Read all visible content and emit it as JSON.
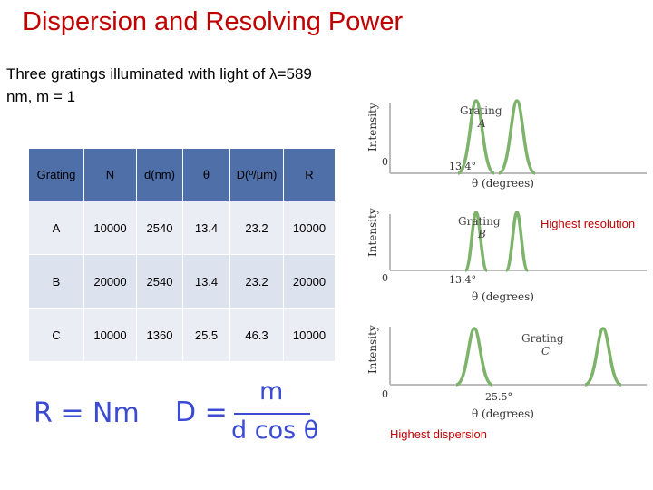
{
  "title": "Dispersion and Resolving Power",
  "subtitle": "Three gratings illuminated with light of λ=589 nm, m = 1",
  "table": {
    "headers": [
      "Grating",
      "N",
      "d(nm)",
      "θ",
      "D(º/μm)",
      "R"
    ],
    "rows": [
      [
        "A",
        "10000",
        "2540",
        "13.4",
        "23.2",
        "10000"
      ],
      [
        "B",
        "20000",
        "2540",
        "13.4",
        "23.2",
        "20000"
      ],
      [
        "C",
        "10000",
        "1360",
        "25.5",
        "46.3",
        "10000"
      ]
    ]
  },
  "formulas": {
    "resolving_power": "R = Nm",
    "dispersion_lhs": "D =",
    "dispersion_numerator": "m",
    "dispersion_denominator": "d cos θ"
  },
  "figure": {
    "panels": [
      {
        "name": "Grating",
        "letter": "A",
        "angle_label": "13.4°",
        "separation_deg": 13.4
      },
      {
        "name": "Grating",
        "letter": "B",
        "angle_label": "13.4°",
        "separation_deg": 13.4
      },
      {
        "name": "Grating",
        "letter": "C",
        "angle_label": "25.5°",
        "separation_deg": 25.5
      }
    ],
    "ylabel": "Intensity",
    "xlabel": "θ (degrees)",
    "origin_label": "0",
    "peak_color": "#7db36a"
  },
  "annotations": {
    "resolution": "Highest resolution",
    "dispersion": "Highest dispersion"
  },
  "colors": {
    "title": "#c00000",
    "table_header": "#4f6fa8",
    "formula": "#3b4bd4"
  }
}
